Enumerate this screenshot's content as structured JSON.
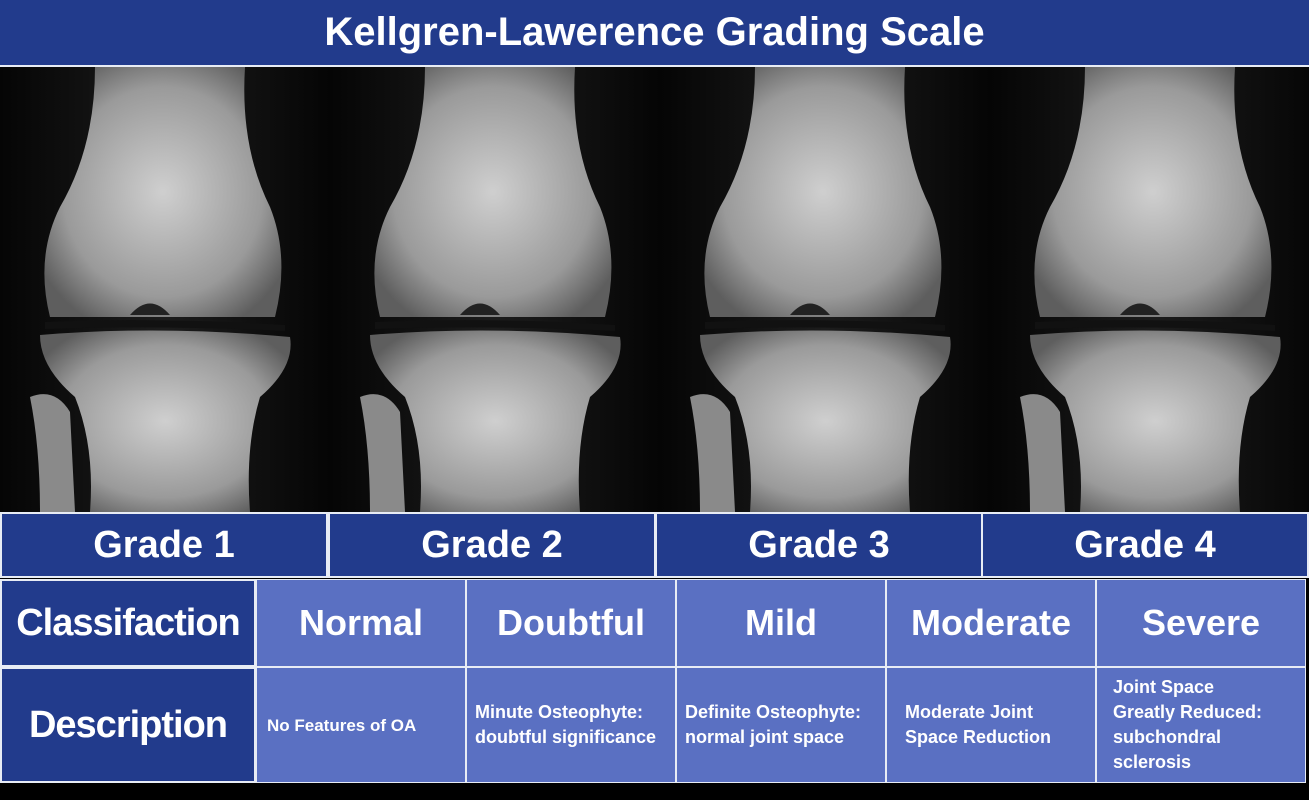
{
  "header": {
    "title": "Kellgren-Lawerence Grading Scale"
  },
  "grades": [
    "Grade 1",
    "Grade 2",
    "Grade 3",
    "Grade 4"
  ],
  "table": {
    "row_headers": [
      "Classifaction",
      "Description"
    ],
    "classification": [
      "Normal",
      "Doubtful",
      "Mild",
      "Moderate",
      "Severe"
    ],
    "description": [
      "No Features of OA",
      "Minute Osteophyte: doubtful significance",
      "Definite Osteophyte: normal joint space",
      "Moderate Joint Space Reduction",
      "Joint Space Greatly Reduced: subchondral sclerosis"
    ]
  }
}
